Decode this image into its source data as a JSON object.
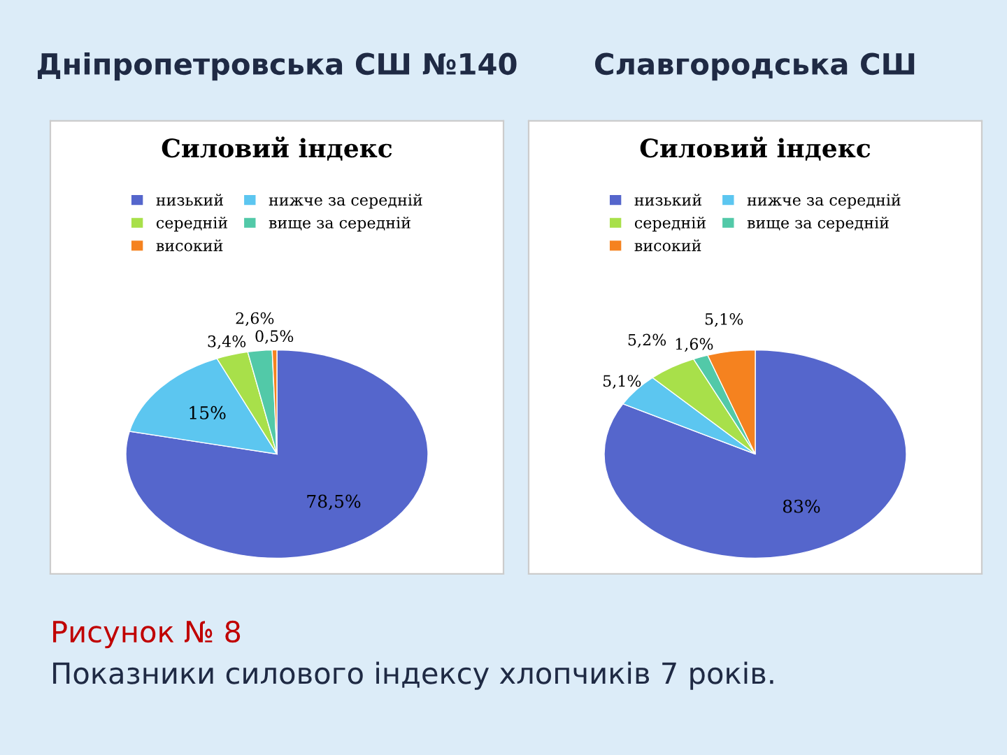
{
  "chart_data": [
    {
      "type": "pie",
      "title": "Дніпропетровська СШ №140",
      "subtitle": "Силовий індекс",
      "categories": [
        "низький",
        "нижче за середній",
        "середній",
        "вище за середній",
        "високий"
      ],
      "values": [
        78.5,
        15,
        3.4,
        2.6,
        0.5
      ],
      "value_labels": [
        "78,5%",
        "15%",
        "3,4%",
        "2,6%",
        "0,5%"
      ],
      "colors": [
        "#5566cc",
        "#5cc6f0",
        "#a8e04a",
        "#52c9a8",
        "#f5821f"
      ],
      "legend": "top",
      "annotations": [
        "Рисунок № 8",
        "Показники силового індексу хлопчиків 7 років."
      ]
    },
    {
      "type": "pie",
      "title": "Славгородська СШ",
      "subtitle": "Силовий індекс",
      "categories": [
        "низький",
        "нижче за середній",
        "середній",
        "вище за середній",
        "високий"
      ],
      "values": [
        83,
        5.1,
        5.2,
        1.6,
        5.1
      ],
      "value_labels": [
        "83%",
        "5,1%",
        "5,2%",
        "1,6%",
        "5,1%"
      ],
      "colors": [
        "#5566cc",
        "#5cc6f0",
        "#a8e04a",
        "#52c9a8",
        "#f5821f"
      ],
      "legend": "top"
    }
  ]
}
